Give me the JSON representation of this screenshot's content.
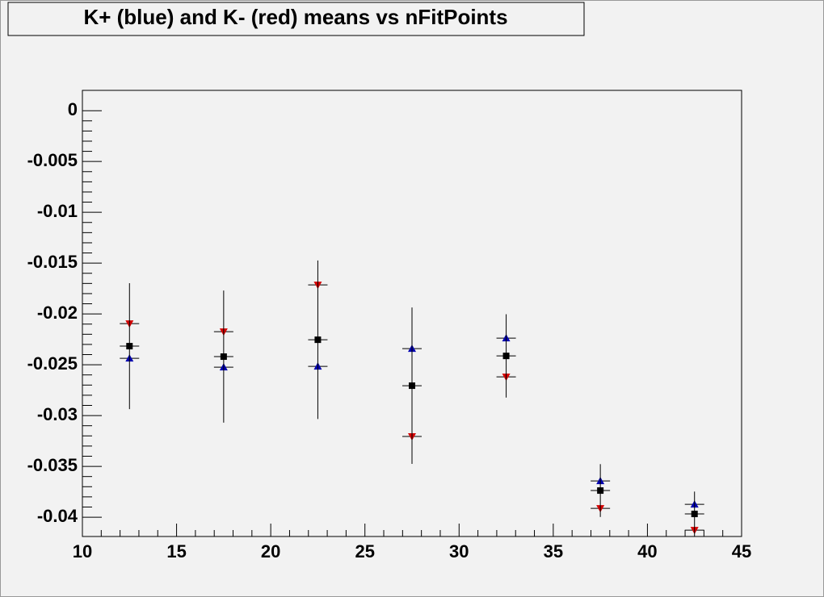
{
  "chart_data": {
    "type": "scatter",
    "title": "K+ (blue) and K- (red) means vs nFitPoints",
    "x": [
      12.5,
      17.5,
      22.5,
      27.5,
      32.5,
      37.5,
      42.5
    ],
    "series": [
      {
        "color": "#d40000",
        "marker": "triangle-down",
        "values": [
          -0.02095,
          -0.02175,
          -0.01714,
          -0.03206,
          -0.02619,
          -0.03913,
          -0.04127
        ]
      },
      {
        "color": "#0000b0",
        "marker": "triangle-up",
        "values": [
          -0.02437,
          -0.02524,
          -0.02516,
          -0.02341,
          -0.02238,
          -0.03643,
          -0.03873
        ]
      },
      {
        "color": "#000000",
        "marker": "square",
        "values": [
          -0.02317,
          -0.0242,
          -0.02254,
          -0.02706,
          -0.02413,
          -0.03738,
          -0.03968
        ],
        "errors": [
          0.0062,
          0.0065,
          0.0078,
          0.0077,
          0.0041,
          0.0026,
          0.0022
        ]
      }
    ],
    "xlim": [
      10,
      45
    ],
    "xticks": [
      10,
      15,
      20,
      25,
      30,
      35,
      40,
      45
    ],
    "ylim": [
      -0.0419,
      0.002
    ],
    "yticks": [
      0,
      -0.005,
      -0.01,
      -0.015,
      -0.02,
      -0.025,
      -0.03,
      -0.035,
      -0.04
    ]
  }
}
